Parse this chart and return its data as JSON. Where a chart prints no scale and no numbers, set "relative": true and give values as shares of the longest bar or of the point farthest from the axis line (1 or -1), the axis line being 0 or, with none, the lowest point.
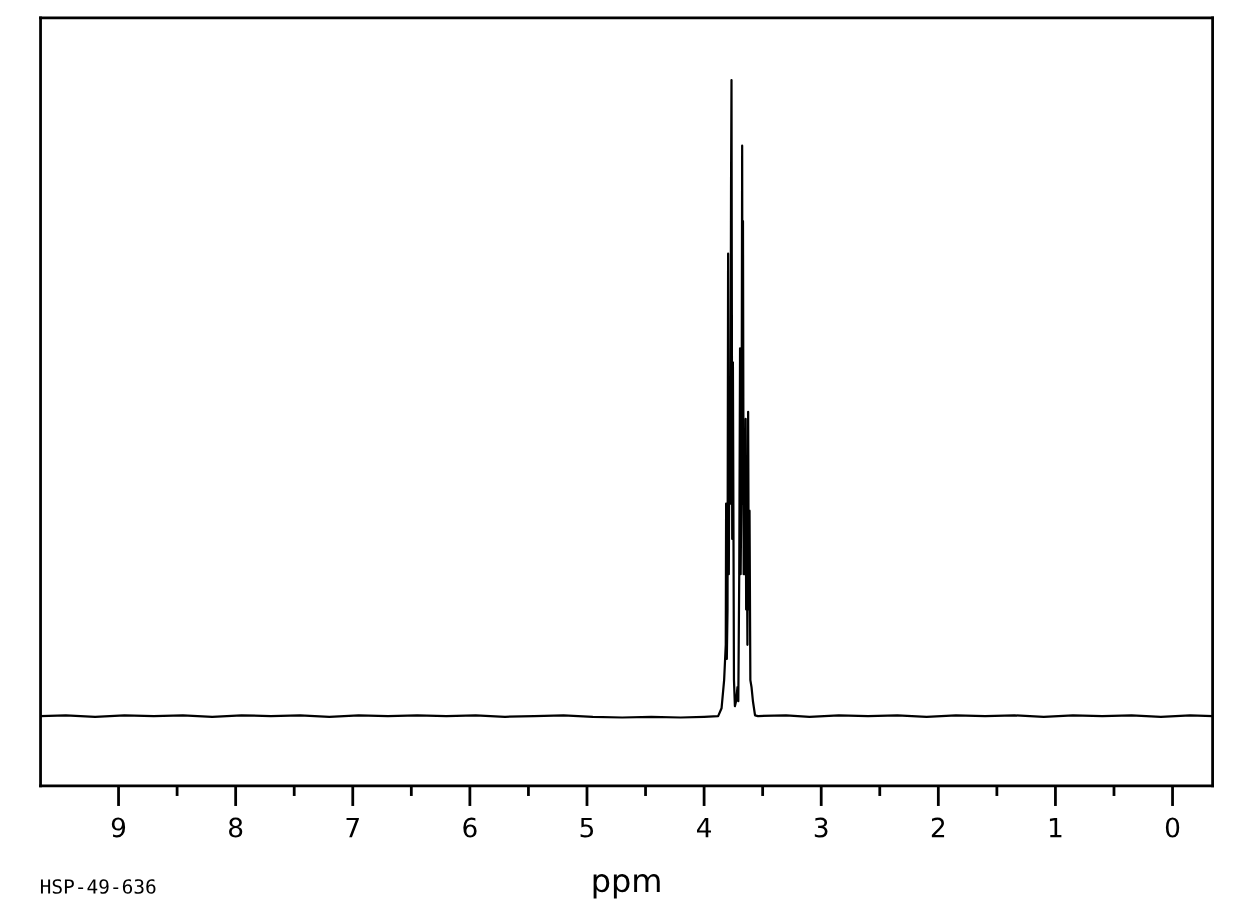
{
  "chart_data": {
    "type": "line",
    "relative": true,
    "xlabel": "ppm",
    "annotations": [
      "HSP-49-636"
    ],
    "xlim": [
      9.666,
      -0.342
    ],
    "xticks": [
      9,
      {
        "value": 8.5,
        "label": null
      },
      8,
      {
        "value": 7.5,
        "label": null
      },
      7,
      {
        "value": 6.5,
        "label": null
      },
      6,
      {
        "value": 5.5,
        "label": null
      },
      5,
      {
        "value": 4.5,
        "label": null
      },
      4,
      {
        "value": 3.5,
        "label": null
      },
      3,
      {
        "value": 2.5,
        "label": null
      },
      2,
      {
        "value": 1.5,
        "label": null
      },
      1,
      {
        "value": 0.5,
        "label": null
      },
      0
    ],
    "tick_labels": "x",
    "line_style": "solid",
    "series": [
      {
        "color": "#000000",
        "x": [
          9.666,
          9.45,
          9.2,
          8.95,
          8.7,
          8.45,
          8.2,
          7.95,
          7.7,
          7.45,
          7.2,
          6.95,
          6.7,
          6.45,
          6.2,
          5.95,
          5.7,
          5.45,
          5.2,
          4.95,
          4.7,
          4.45,
          4.2,
          4.0,
          3.88,
          3.851,
          3.829,
          3.815,
          3.812,
          3.806,
          3.8,
          3.795,
          3.789,
          3.783,
          3.776,
          3.77,
          3.766,
          3.76,
          3.754,
          3.745,
          3.737,
          3.727,
          3.715,
          3.708,
          3.7,
          3.693,
          3.688,
          3.68,
          3.675,
          3.671,
          3.668,
          3.662,
          3.657,
          3.652,
          3.645,
          3.641,
          3.636,
          3.63,
          3.624,
          3.618,
          3.612,
          3.605,
          3.595,
          3.583,
          3.565,
          3.54,
          3.3,
          3.1,
          2.85,
          2.6,
          2.35,
          2.1,
          1.85,
          1.6,
          1.35,
          1.1,
          0.85,
          0.6,
          0.35,
          0.1,
          -0.15,
          -0.342
        ],
        "values": [
          0.099,
          0.1,
          0.098,
          0.1,
          0.099,
          0.1,
          0.098,
          0.1,
          0.099,
          0.1,
          0.098,
          0.1,
          0.099,
          0.1,
          0.099,
          0.1,
          0.098,
          0.099,
          0.1,
          0.098,
          0.097,
          0.098,
          0.097,
          0.098,
          0.099,
          0.11,
          0.15,
          0.2,
          0.4,
          0.18,
          0.25,
          0.754,
          0.3,
          0.55,
          0.4,
          0.85,
          1.0,
          0.35,
          0.6,
          0.15,
          0.113,
          0.12,
          0.14,
          0.12,
          0.3,
          0.62,
          0.3,
          0.45,
          0.907,
          0.4,
          0.8,
          0.3,
          0.45,
          0.3,
          0.52,
          0.25,
          0.4,
          0.2,
          0.53,
          0.25,
          0.39,
          0.15,
          0.14,
          0.12,
          0.1,
          0.099,
          0.1,
          0.098,
          0.1,
          0.099,
          0.1,
          0.098,
          0.1,
          0.099,
          0.1,
          0.098,
          0.1,
          0.099,
          0.1,
          0.098,
          0.1,
          0.099
        ]
      }
    ]
  }
}
